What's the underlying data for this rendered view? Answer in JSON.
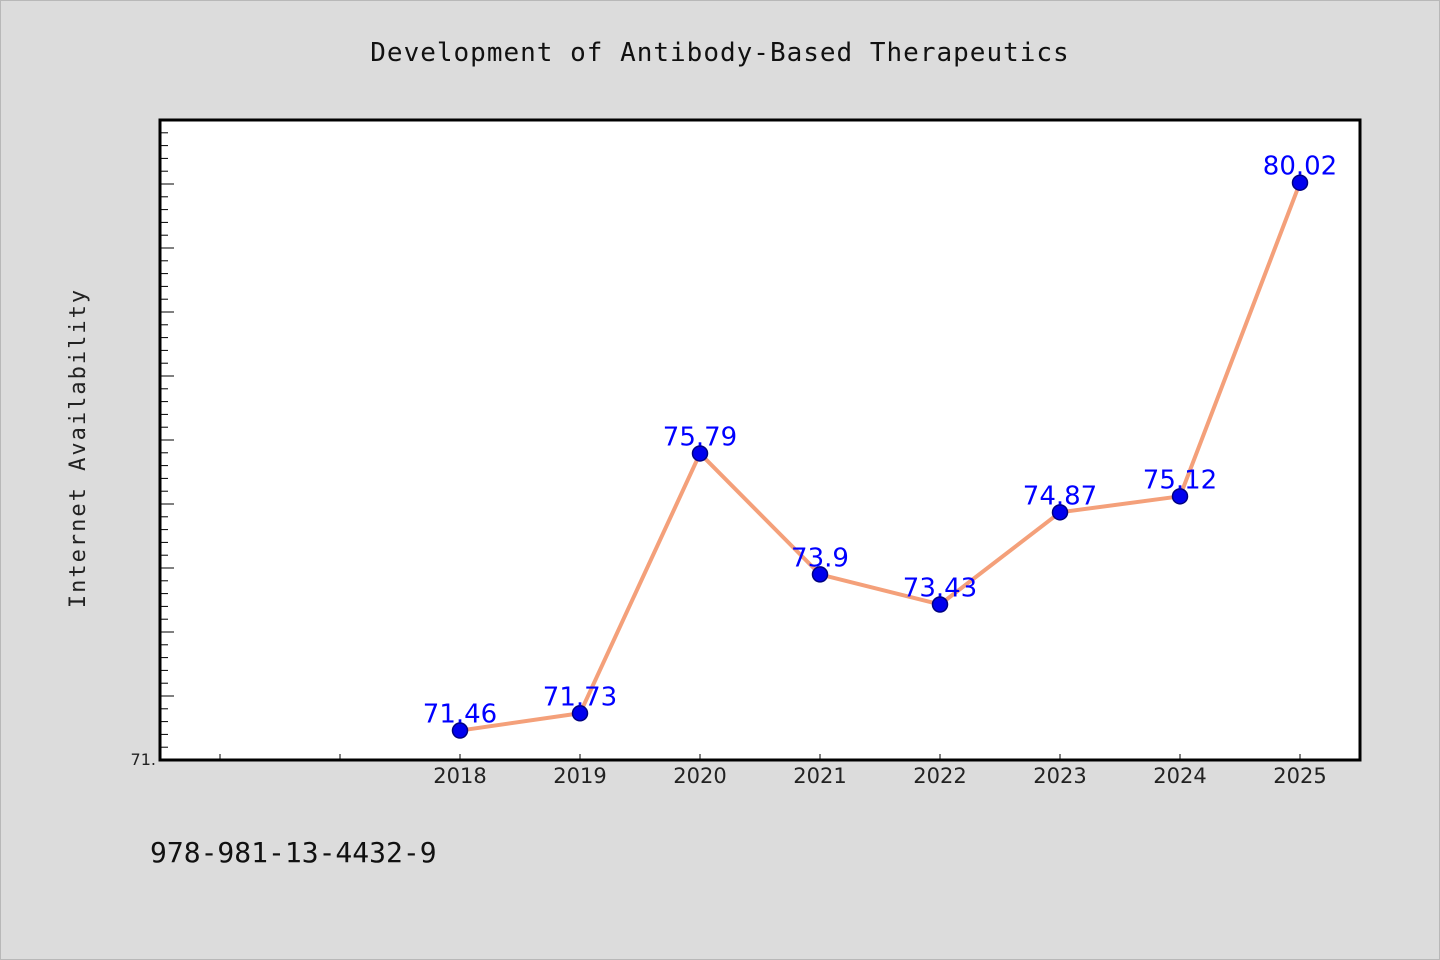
{
  "chart_data": {
    "type": "line",
    "title": "Development of Antibody-Based Therapeutics",
    "ylabel": "Internet Availability",
    "xlabel": "",
    "x": [
      "2018",
      "2019",
      "2020",
      "2021",
      "2022",
      "2023",
      "2024",
      "2025"
    ],
    "series": [
      {
        "values": [
          71.46,
          71.73,
          75.79,
          73.9,
          73.43,
          74.87,
          75.12,
          80.02
        ],
        "data_labels": [
          "71.46",
          "71.73",
          "75.79",
          "73.9",
          "73.43",
          "74.87",
          "75.12",
          "80.02"
        ]
      }
    ],
    "ylim": [
      71.0,
      81.0
    ],
    "xlim_slots": 10,
    "first_x_slot": 2,
    "y_tick_labels": [
      {
        "value": 71.0,
        "text": "71."
      }
    ],
    "grid": false,
    "legend": "none",
    "colors": {
      "line": "#f4a07a",
      "marker_fill": "#0000ee",
      "marker_edge": "#000080",
      "data_label": "#0000ff",
      "plot_background": "#ffffff",
      "page_background": "#dcdcdc"
    }
  },
  "footer": {
    "isbn": "978-981-13-4432-9"
  }
}
